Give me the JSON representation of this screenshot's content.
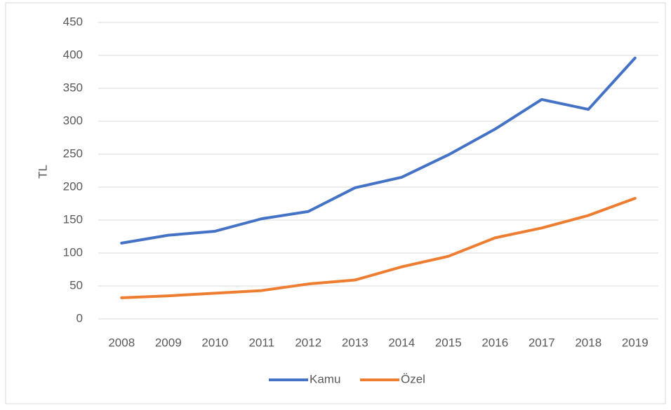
{
  "chart_data": {
    "type": "line",
    "y_label": "TL",
    "categories": [
      "2008",
      "2009",
      "2010",
      "2011",
      "2012",
      "2013",
      "2014",
      "2015",
      "2016",
      "2017",
      "2018",
      "2019"
    ],
    "series": [
      {
        "name": "Kamu",
        "color": "#4472c4",
        "values": [
          115,
          127,
          133,
          152,
          163,
          199,
          215,
          249,
          288,
          333,
          318,
          396
        ]
      },
      {
        "name": "Özel",
        "color": "#ed7d31",
        "values": [
          32,
          35,
          39,
          43,
          53,
          59,
          79,
          95,
          123,
          138,
          157,
          183
        ]
      }
    ],
    "ylim": [
      0,
      450
    ],
    "yticks": [
      0,
      50,
      100,
      150,
      200,
      250,
      300,
      350,
      400,
      450
    ],
    "grid": true,
    "legend": "bottom"
  }
}
